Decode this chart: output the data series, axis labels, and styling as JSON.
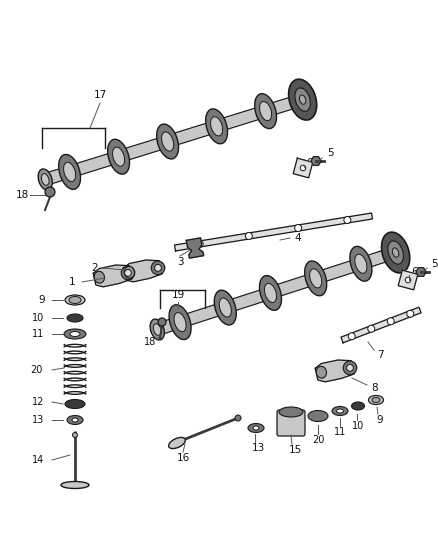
{
  "bg_color": "#f5f5f5",
  "line_color": "#1a1a1a",
  "dark_gray": "#3a3a3a",
  "mid_gray": "#787878",
  "light_gray": "#c8c8c8",
  "lighter_gray": "#e0e0e0",
  "fig_width": 4.38,
  "fig_height": 5.33,
  "dpi": 100
}
